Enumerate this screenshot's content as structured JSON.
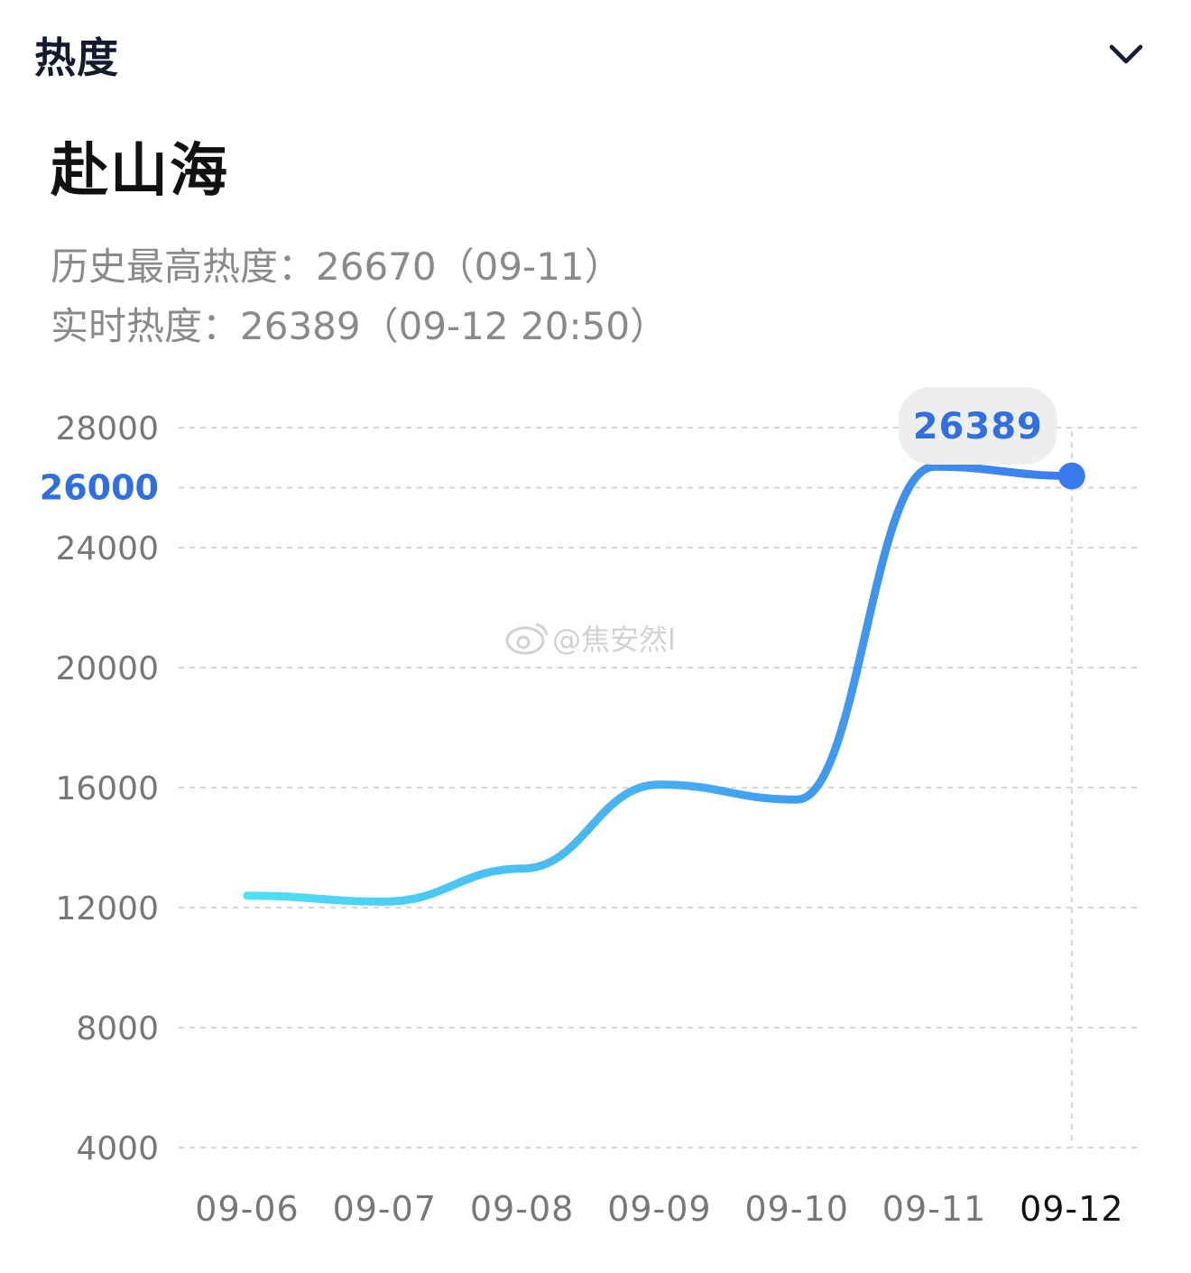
{
  "header": {
    "title": "热度"
  },
  "topic": {
    "title": "赴山海",
    "peak_line": "历史最高热度：26670（09-11）",
    "realtime_line": "实时热度：26389（09-12 20:50）"
  },
  "watermark": "@焦安然l",
  "colors": {
    "line_start": "#4fe0f2",
    "line_end": "#3a7cf0",
    "highlight": "#2f6fe0",
    "tooltip_bg": "#eeeeee"
  },
  "chart_data": {
    "type": "line",
    "categories": [
      "09-06",
      "09-07",
      "09-08",
      "09-09",
      "09-10",
      "09-11",
      "09-12"
    ],
    "y_ticks": [
      28000,
      26000,
      24000,
      20000,
      16000,
      12000,
      8000,
      4000
    ],
    "highlighted_tick": 26000,
    "active_category": "09-12",
    "series": [
      {
        "values": [
          12400,
          12200,
          13300,
          16100,
          15600,
          26700,
          26389
        ]
      }
    ],
    "tooltip_value": "26389",
    "grid": true
  }
}
